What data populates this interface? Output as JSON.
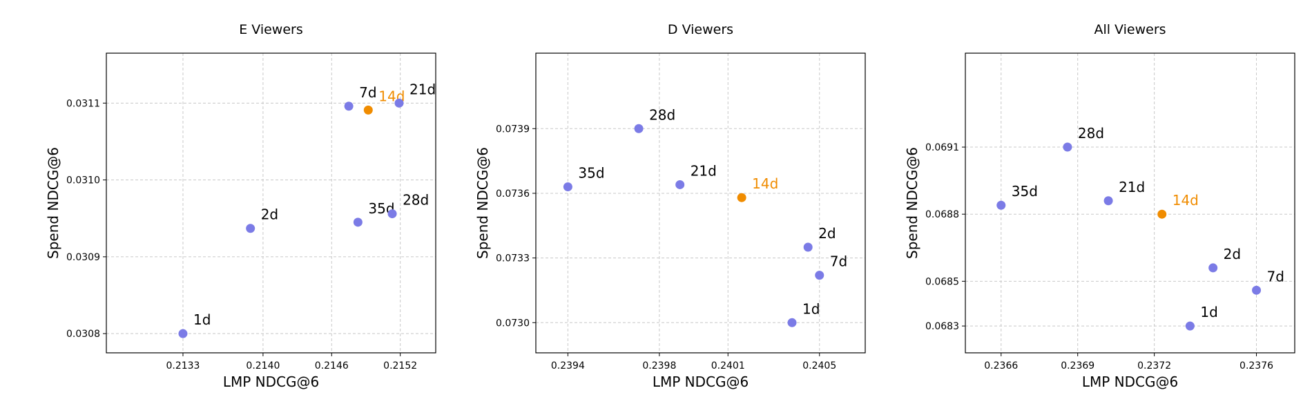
{
  "colors": {
    "point": "#7b7be6",
    "highlight": "#f08c00",
    "grid": "#c8c8c8",
    "frame": "#000000",
    "text": "#000000"
  },
  "chart_data": [
    {
      "type": "scatter",
      "title": "E Viewers",
      "xlabel": "LMP NDCG@6",
      "ylabel": "Spend NDCG@6",
      "xlim": [
        0.21263,
        0.21551
      ],
      "ylim": [
        0.030775,
        0.031165
      ],
      "xticks": [
        0.2133,
        0.214,
        0.2146,
        0.2152
      ],
      "yticks": [
        0.0308,
        0.0309,
        0.031,
        0.0311
      ],
      "xtick_labels": [
        "0.2133",
        "0.2140",
        "0.2146",
        "0.2152"
      ],
      "ytick_labels": [
        "0.0308",
        "0.0309",
        "0.0310",
        "0.0311"
      ],
      "grid": true,
      "points": [
        {
          "label": "1d",
          "x": 0.2133,
          "y": 0.0308,
          "highlight": false
        },
        {
          "label": "2d",
          "x": 0.21389,
          "y": 0.030937,
          "highlight": false
        },
        {
          "label": "7d",
          "x": 0.21475,
          "y": 0.031096,
          "highlight": false
        },
        {
          "label": "14d",
          "x": 0.21492,
          "y": 0.031091,
          "highlight": true
        },
        {
          "label": "21d",
          "x": 0.21519,
          "y": 0.0311,
          "highlight": false
        },
        {
          "label": "35d",
          "x": 0.21483,
          "y": 0.030945,
          "highlight": false
        },
        {
          "label": "28d",
          "x": 0.21513,
          "y": 0.030956,
          "highlight": false
        }
      ]
    },
    {
      "type": "scatter",
      "title": "D Viewers",
      "xlabel": "LMP NDCG@6",
      "ylabel": "Spend NDCG@6",
      "xlim": [
        0.23926,
        0.2407
      ],
      "ylim": [
        0.07286,
        0.07425
      ],
      "xticks": [
        0.2394,
        0.2398,
        0.2401,
        0.2405
      ],
      "yticks": [
        0.073,
        0.0733,
        0.0736,
        0.0739
      ],
      "xtick_labels": [
        "0.2394",
        "0.2398",
        "0.2401",
        "0.2405"
      ],
      "ytick_labels": [
        "0.0730",
        "0.0733",
        "0.0736",
        "0.0739"
      ],
      "grid": true,
      "points": [
        {
          "label": "35d",
          "x": 0.2394,
          "y": 0.07363,
          "highlight": false
        },
        {
          "label": "28d",
          "x": 0.23971,
          "y": 0.0739,
          "highlight": false
        },
        {
          "label": "21d",
          "x": 0.23989,
          "y": 0.07364,
          "highlight": false
        },
        {
          "label": "14d",
          "x": 0.24016,
          "y": 0.07358,
          "highlight": true
        },
        {
          "label": "2d",
          "x": 0.24045,
          "y": 0.07335,
          "highlight": false
        },
        {
          "label": "7d",
          "x": 0.2405,
          "y": 0.07322,
          "highlight": false
        },
        {
          "label": "1d",
          "x": 0.24038,
          "y": 0.073,
          "highlight": false
        }
      ]
    },
    {
      "type": "scatter",
      "title": "All Viewers",
      "xlabel": "LMP NDCG@6",
      "ylabel": "Spend NDCG@6",
      "xlim": [
        0.23646,
        0.23775
      ],
      "ylim": [
        0.06818,
        0.06952
      ],
      "xticks": [
        0.2366,
        0.2369,
        0.2372,
        0.2376
      ],
      "yticks": [
        0.0683,
        0.0685,
        0.0688,
        0.0691
      ],
      "xtick_labels": [
        "0.2366",
        "0.2369",
        "0.2372",
        "0.2376"
      ],
      "ytick_labels": [
        "0.0683",
        "0.0685",
        "0.0688",
        "0.0691"
      ],
      "grid": true,
      "points": [
        {
          "label": "35d",
          "x": 0.2366,
          "y": 0.06884,
          "highlight": false
        },
        {
          "label": "28d",
          "x": 0.23686,
          "y": 0.0691,
          "highlight": false
        },
        {
          "label": "21d",
          "x": 0.23702,
          "y": 0.06886,
          "highlight": false
        },
        {
          "label": "14d",
          "x": 0.23723,
          "y": 0.0688,
          "highlight": true
        },
        {
          "label": "2d",
          "x": 0.23743,
          "y": 0.06856,
          "highlight": false
        },
        {
          "label": "7d",
          "x": 0.2376,
          "y": 0.06846,
          "highlight": false
        },
        {
          "label": "1d",
          "x": 0.23734,
          "y": 0.0683,
          "highlight": false
        }
      ]
    }
  ]
}
